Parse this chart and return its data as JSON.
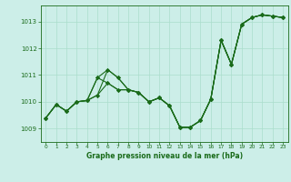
{
  "title": "Graphe pression niveau de la mer (hPa)",
  "background_color": "#cceee8",
  "grid_color": "#aaddcc",
  "line_color": "#1a6b1a",
  "marker_color": "#1a6b1a",
  "xlim": [
    -0.5,
    23.5
  ],
  "ylim": [
    1008.5,
    1013.6
  ],
  "yticks": [
    1009,
    1010,
    1011,
    1012,
    1013
  ],
  "xticks": [
    0,
    1,
    2,
    3,
    4,
    5,
    6,
    7,
    8,
    9,
    10,
    11,
    12,
    13,
    14,
    15,
    16,
    17,
    18,
    19,
    20,
    21,
    22,
    23
  ],
  "series": [
    [
      1009.4,
      1009.9,
      1009.65,
      1010.0,
      1010.05,
      1010.25,
      1011.2,
      1010.9,
      1010.45,
      1010.35,
      1010.0,
      1010.15,
      1009.85,
      1009.05,
      1009.05,
      1009.3,
      1010.1,
      1012.3,
      1011.4,
      1012.9,
      1013.15,
      1013.25,
      1013.2,
      1013.15
    ],
    [
      1009.4,
      1009.9,
      1009.65,
      1010.0,
      1010.05,
      1010.25,
      1010.7,
      1010.45,
      1010.45,
      1010.35,
      1010.0,
      1010.15,
      1009.85,
      1009.05,
      1009.05,
      1009.3,
      1010.1,
      1012.3,
      1011.4,
      1012.9,
      1013.15,
      1013.25,
      1013.2,
      1013.15
    ],
    [
      1009.4,
      1009.9,
      1009.65,
      1010.0,
      1010.05,
      1010.9,
      1011.2,
      1010.9,
      1010.45,
      1010.35,
      1010.0,
      1010.15,
      1009.85,
      1009.05,
      1009.05,
      1009.3,
      1010.1,
      1012.3,
      1011.4,
      1012.9,
      1013.15,
      1013.25,
      1013.2,
      1013.15
    ],
    [
      1009.4,
      1009.9,
      1009.65,
      1010.0,
      1010.05,
      1010.9,
      1010.7,
      1010.45,
      1010.45,
      1010.35,
      1010.0,
      1010.15,
      1009.85,
      1009.05,
      1009.05,
      1009.3,
      1010.1,
      1012.3,
      1011.4,
      1012.9,
      1013.15,
      1013.25,
      1013.2,
      1013.15
    ]
  ]
}
